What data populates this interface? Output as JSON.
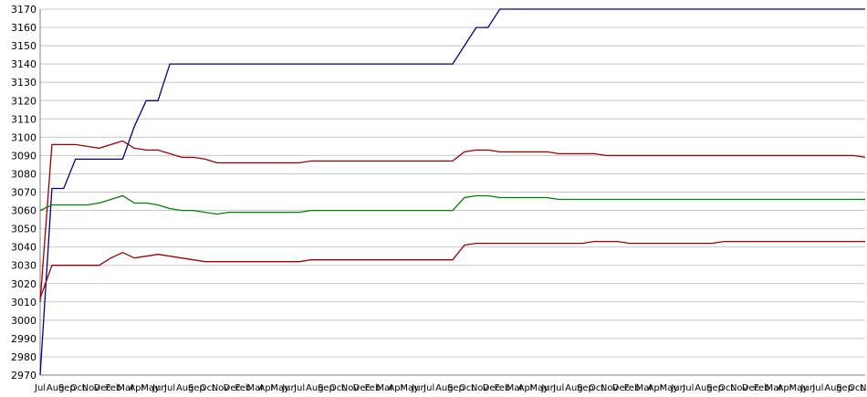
{
  "chart_data": {
    "type": "line",
    "title": "",
    "xlabel": "",
    "ylabel": "",
    "ylim": [
      2970,
      3170
    ],
    "yticks": [
      2970,
      2980,
      2990,
      3000,
      3010,
      3020,
      3030,
      3040,
      3050,
      3060,
      3070,
      3080,
      3090,
      3100,
      3110,
      3120,
      3130,
      3140,
      3150,
      3160,
      3170
    ],
    "grid": true,
    "legend": "none",
    "x": [
      "Jul",
      "Aug",
      "Sep",
      "Oct",
      "Nov",
      "Dec",
      "Feb",
      "Mar",
      "Apr",
      "May",
      "Jun",
      "Jul",
      "Aug",
      "Sep",
      "Oct",
      "Nov",
      "Dec",
      "Feb",
      "Mar",
      "Apr",
      "May",
      "Jun",
      "Jul",
      "Aug",
      "Sep",
      "Oct",
      "Nov",
      "Dec",
      "Feb",
      "Mar",
      "Apr",
      "May",
      "Jun",
      "Jul",
      "Aug",
      "Sep",
      "Oct",
      "Nov",
      "Dec",
      "Feb",
      "Mar",
      "Apr",
      "May",
      "Jun",
      "Jul",
      "Aug",
      "Sep",
      "Oct",
      "Nov",
      "Dec",
      "Feb",
      "Mar",
      "Apr",
      "May",
      "Jun",
      "Jul",
      "Aug",
      "Sep",
      "Oct",
      "Nov",
      "Dec",
      "Feb",
      "Mar",
      "Apr",
      "May",
      "Jun",
      "Jul",
      "Aug",
      "Sep",
      "Oct",
      "Nov"
    ],
    "series": [
      {
        "color": "#00008b",
        "values": [
          2970,
          3072,
          3072,
          3088,
          3088,
          3088,
          3088,
          3088,
          3106,
          3120,
          3120,
          3140,
          3140,
          3140,
          3140,
          3140,
          3140,
          3140,
          3140,
          3140,
          3140,
          3140,
          3140,
          3140,
          3140,
          3140,
          3140,
          3140,
          3140,
          3140,
          3140,
          3140,
          3140,
          3140,
          3140,
          3140,
          3150,
          3160,
          3160,
          3170,
          3170,
          3170,
          3170,
          3170,
          3170,
          3170,
          3170,
          3170,
          3170,
          3170,
          3170,
          3170,
          3170,
          3170,
          3170,
          3170,
          3170,
          3170,
          3170,
          3170,
          3170,
          3170,
          3170,
          3170,
          3170,
          3170,
          3170,
          3170,
          3170,
          3170,
          3170
        ]
      },
      {
        "color": "#a00000",
        "values": [
          3010,
          3096,
          3096,
          3096,
          3095,
          3094,
          3096,
          3098,
          3094,
          3093,
          3093,
          3091,
          3089,
          3089,
          3088,
          3086,
          3086,
          3086,
          3086,
          3086,
          3086,
          3086,
          3086,
          3087,
          3087,
          3087,
          3087,
          3087,
          3087,
          3087,
          3087,
          3087,
          3087,
          3087,
          3087,
          3087,
          3092,
          3093,
          3093,
          3092,
          3092,
          3092,
          3092,
          3092,
          3091,
          3091,
          3091,
          3091,
          3090,
          3090,
          3090,
          3090,
          3090,
          3090,
          3090,
          3090,
          3090,
          3090,
          3090,
          3090,
          3090,
          3090,
          3090,
          3090,
          3090,
          3090,
          3090,
          3090,
          3090,
          3090,
          3089
        ]
      },
      {
        "color": "#008000",
        "values": [
          3060,
          3063,
          3063,
          3063,
          3063,
          3064,
          3066,
          3068,
          3064,
          3064,
          3063,
          3061,
          3060,
          3060,
          3059,
          3058,
          3059,
          3059,
          3059,
          3059,
          3059,
          3059,
          3059,
          3060,
          3060,
          3060,
          3060,
          3060,
          3060,
          3060,
          3060,
          3060,
          3060,
          3060,
          3060,
          3060,
          3067,
          3068,
          3068,
          3067,
          3067,
          3067,
          3067,
          3067,
          3066,
          3066,
          3066,
          3066,
          3066,
          3066,
          3066,
          3066,
          3066,
          3066,
          3066,
          3066,
          3066,
          3066,
          3066,
          3066,
          3066,
          3066,
          3066,
          3066,
          3066,
          3066,
          3066,
          3066,
          3066,
          3066,
          3066
        ]
      },
      {
        "color": "#a00000",
        "values": [
          3012,
          3030,
          3030,
          3030,
          3030,
          3030,
          3034,
          3037,
          3034,
          3035,
          3036,
          3035,
          3034,
          3033,
          3032,
          3032,
          3032,
          3032,
          3032,
          3032,
          3032,
          3032,
          3032,
          3033,
          3033,
          3033,
          3033,
          3033,
          3033,
          3033,
          3033,
          3033,
          3033,
          3033,
          3033,
          3033,
          3041,
          3042,
          3042,
          3042,
          3042,
          3042,
          3042,
          3042,
          3042,
          3042,
          3042,
          3043,
          3043,
          3043,
          3042,
          3042,
          3042,
          3042,
          3042,
          3042,
          3042,
          3042,
          3043,
          3043,
          3043,
          3043,
          3043,
          3043,
          3043,
          3043,
          3043,
          3043,
          3043,
          3043,
          3043
        ]
      }
    ]
  }
}
